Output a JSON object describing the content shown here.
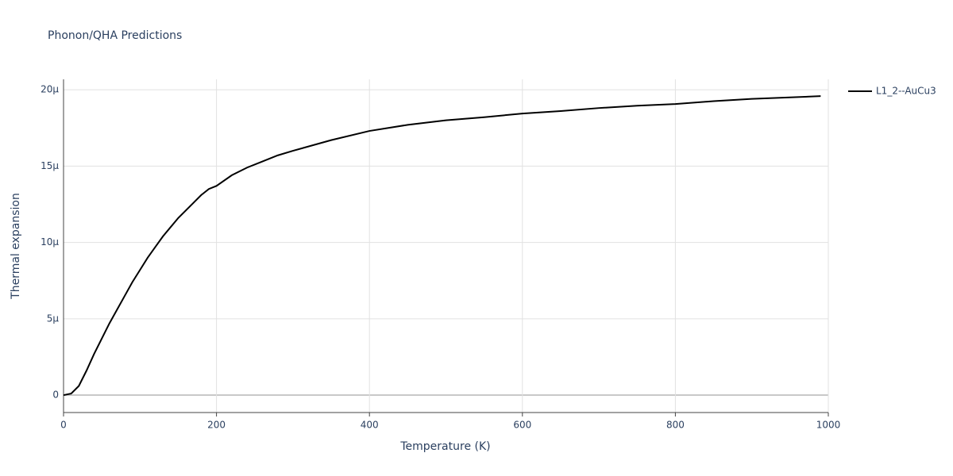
{
  "chart_data": {
    "type": "line",
    "title": "Phonon/QHA Predictions",
    "x_label": "Temperature (K)",
    "y_label": "Thermal expansion",
    "x": [
      0,
      10,
      20,
      30,
      40,
      50,
      60,
      70,
      80,
      90,
      100,
      110,
      120,
      130,
      140,
      150,
      160,
      170,
      180,
      190,
      200,
      220,
      240,
      260,
      280,
      300,
      350,
      400,
      450,
      500,
      550,
      600,
      650,
      700,
      750,
      800,
      850,
      900,
      950,
      990
    ],
    "series": [
      {
        "name": "L1_2--AuCu3",
        "color": "#000000",
        "values": [
          0,
          1e-07,
          6e-07,
          1.6e-06,
          2.7e-06,
          3.7e-06,
          4.7e-06,
          5.6e-06,
          6.5e-06,
          7.4e-06,
          8.2e-06,
          9e-06,
          9.7e-06,
          1.04e-05,
          1.1e-05,
          1.16e-05,
          1.21e-05,
          1.26e-05,
          1.31e-05,
          1.35e-05,
          1.37e-05,
          1.44e-05,
          1.49e-05,
          1.53e-05,
          1.57e-05,
          1.6e-05,
          1.67e-05,
          1.73e-05,
          1.77e-05,
          1.8e-05,
          1.82e-05,
          1.844e-05,
          1.86e-05,
          1.88e-05,
          1.895e-05,
          1.906e-05,
          1.925e-05,
          1.94e-05,
          1.95e-05,
          1.958e-05
        ]
      }
    ],
    "xlim": [
      0,
      1000
    ],
    "xticks": [
      0,
      200,
      400,
      600,
      800,
      1000
    ],
    "ylim": [
      -1.14e-06,
      2.068e-05
    ],
    "yticks": [
      0,
      {
        "value": 5e-06,
        "label": "5μ"
      },
      {
        "value": 1e-05,
        "label": "10μ"
      },
      {
        "value": 1.5e-05,
        "label": "15μ"
      },
      {
        "value": 2e-05,
        "label": "20μ"
      }
    ],
    "grid": true,
    "legend": "right"
  }
}
